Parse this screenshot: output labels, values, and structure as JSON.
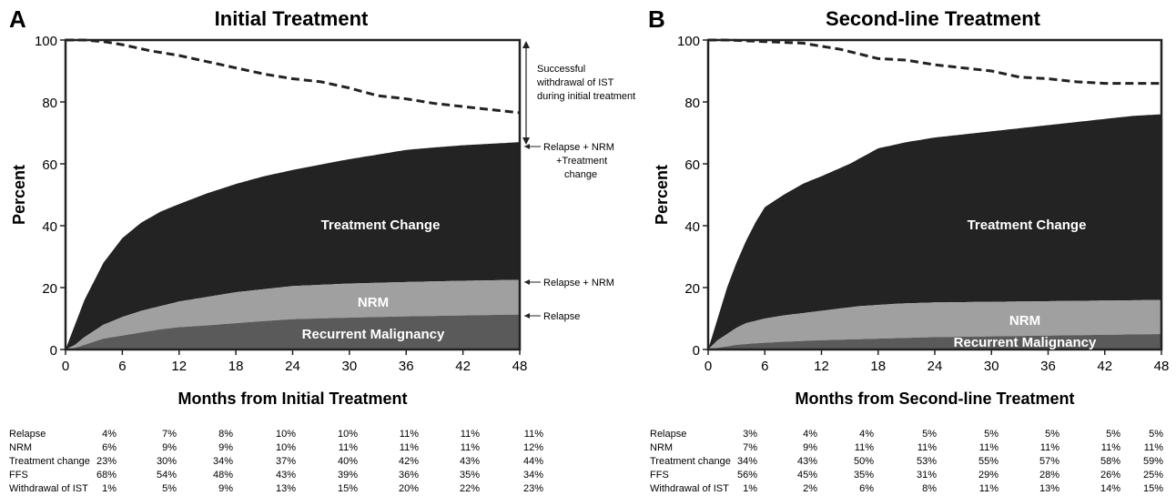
{
  "chart_data": [
    {
      "panel_letter": "A",
      "type": "area",
      "title": "Initial Treatment",
      "xlabel": "Months from Initial Treatment",
      "ylabel": "Percent",
      "xlim": [
        0,
        48
      ],
      "ylim": [
        0,
        100
      ],
      "x_ticks": [
        0,
        6,
        12,
        18,
        24,
        30,
        36,
        42,
        48
      ],
      "y_ticks": [
        0,
        20,
        40,
        60,
        80,
        100
      ],
      "colors": {
        "relapse": "#5a5a5a",
        "nrm": "#a0a0a0",
        "treatment_change": "#232323",
        "dashed": "#222222"
      },
      "series": [
        {
          "name": "Relapse",
          "x": [
            0,
            1,
            2,
            3,
            4,
            6,
            8,
            10,
            12,
            15,
            18,
            21,
            24,
            30,
            36,
            42,
            48
          ],
          "values": [
            0,
            0.5,
            1.5,
            2.5,
            3.5,
            4.5,
            5.5,
            6.5,
            7.2,
            7.8,
            8.5,
            9.2,
            9.8,
            10.3,
            10.7,
            11,
            11.3
          ]
        },
        {
          "name": "Relapse + NRM",
          "x": [
            0,
            1,
            2,
            3,
            4,
            6,
            8,
            10,
            12,
            15,
            18,
            21,
            24,
            30,
            36,
            42,
            48
          ],
          "values": [
            0,
            1.5,
            4,
            6,
            8,
            10.5,
            12.5,
            14,
            15.5,
            17,
            18.5,
            19.5,
            20.5,
            21.3,
            21.8,
            22.2,
            22.5
          ]
        },
        {
          "name": "Relapse + NRM +Treatment change",
          "x": [
            0,
            0.5,
            1,
            2,
            3,
            4,
            5,
            6,
            8,
            10,
            12,
            15,
            18,
            21,
            24,
            27,
            30,
            33,
            36,
            39,
            42,
            45,
            48
          ],
          "values": [
            0,
            4,
            8,
            16,
            22,
            28,
            32,
            36,
            41,
            44.5,
            47,
            50.5,
            53.5,
            56,
            58,
            59.8,
            61.5,
            63,
            64.5,
            65.3,
            66,
            66.5,
            67
          ]
        },
        {
          "name": "Successful withdrawal of IST during initial treatment",
          "x": [
            0,
            2,
            4,
            6,
            9,
            12,
            15,
            18,
            21,
            24,
            27,
            30,
            33,
            36,
            39,
            42,
            45,
            48
          ],
          "values": [
            100,
            100,
            99.5,
            98.5,
            96.5,
            95,
            93,
            91,
            89,
            87.5,
            86.5,
            84.5,
            82,
            81,
            79.5,
            78.5,
            77.5,
            76.5
          ]
        }
      ],
      "region_labels": {
        "treatment_change": "Treatment Change",
        "nrm": "NRM",
        "relapse": "Recurrent Malignancy"
      },
      "annotations": {
        "withdrawal": [
          "Successful",
          "withdrawal of IST",
          "during initial treatment"
        ],
        "total": [
          "Relapse + NRM",
          "+Treatment",
          "change"
        ],
        "relapse_nrm": "Relapse + NRM",
        "relapse": "Relapse"
      },
      "table": {
        "rows": [
          {
            "label": "Relapse",
            "values": [
              "4%",
              "7%",
              "8%",
              "10%",
              "10%",
              "11%",
              "11%",
              "11%"
            ]
          },
          {
            "label": "NRM",
            "values": [
              "6%",
              "9%",
              "9%",
              "10%",
              "11%",
              "11%",
              "11%",
              "12%"
            ]
          },
          {
            "label": "Treatment change",
            "values": [
              "23%",
              "30%",
              "34%",
              "37%",
              "40%",
              "42%",
              "43%",
              "44%"
            ]
          },
          {
            "label": "FFS",
            "values": [
              "68%",
              "54%",
              "48%",
              "43%",
              "39%",
              "36%",
              "35%",
              "34%"
            ]
          },
          {
            "label": "Withdrawal of IST",
            "values": [
              "1%",
              "5%",
              "9%",
              "13%",
              "15%",
              "20%",
              "22%",
              "23%"
            ]
          }
        ]
      }
    },
    {
      "panel_letter": "B",
      "type": "area",
      "title": "Second-line Treatment",
      "xlabel": "Months from Second-line Treatment",
      "ylabel": "Percent",
      "xlim": [
        0,
        48
      ],
      "ylim": [
        0,
        100
      ],
      "x_ticks": [
        0,
        6,
        12,
        18,
        24,
        30,
        36,
        42,
        48
      ],
      "y_ticks": [
        0,
        20,
        40,
        60,
        80,
        100
      ],
      "colors": {
        "relapse": "#5a5a5a",
        "nrm": "#a0a0a0",
        "treatment_change": "#232323",
        "dashed": "#222222"
      },
      "series": [
        {
          "name": "Relapse",
          "x": [
            0,
            1,
            2,
            3,
            5,
            8,
            12,
            18,
            24,
            36,
            48
          ],
          "values": [
            0,
            0.5,
            1,
            1.5,
            2,
            2.5,
            3,
            3.5,
            4,
            4.5,
            5
          ]
        },
        {
          "name": "Relapse + NRM",
          "x": [
            0,
            1,
            2,
            3,
            4,
            6,
            8,
            12,
            16,
            20,
            24,
            36,
            48
          ],
          "values": [
            0,
            3,
            5,
            7,
            8.5,
            10,
            11,
            12.5,
            14,
            14.8,
            15.2,
            15.6,
            16
          ]
        },
        {
          "name": "Relapse + NRM +Treatment change",
          "x": [
            0,
            0.5,
            1,
            2,
            3,
            4,
            5,
            6,
            8,
            10,
            12,
            15,
            18,
            21,
            24,
            27,
            30,
            33,
            36,
            39,
            42,
            45,
            48
          ],
          "values": [
            0,
            5,
            10,
            20,
            28,
            35,
            41,
            46,
            50,
            53.5,
            56,
            60,
            65,
            67,
            68.5,
            69.5,
            70.5,
            71.5,
            72.5,
            73.5,
            74.5,
            75.5,
            76
          ]
        },
        {
          "name": "Withdrawal of IST",
          "x": [
            0,
            2,
            6,
            10,
            12,
            14,
            16,
            18,
            21,
            24,
            27,
            30,
            33,
            36,
            39,
            42,
            45,
            48
          ],
          "values": [
            100,
            100,
            99.5,
            99,
            98,
            97,
            95.5,
            94,
            93.5,
            92,
            91,
            90,
            88,
            87.5,
            86.5,
            86,
            86,
            86
          ]
        }
      ],
      "region_labels": {
        "treatment_change": "Treatment Change",
        "nrm": "NRM",
        "relapse": "Recurrent Malignancy"
      },
      "table": {
        "rows": [
          {
            "label": "Relapse",
            "values": [
              "3%",
              "4%",
              "4%",
              "5%",
              "5%",
              "5%",
              "5%",
              "5%"
            ]
          },
          {
            "label": "NRM",
            "values": [
              "7%",
              "9%",
              "11%",
              "11%",
              "11%",
              "11%",
              "11%",
              "11%"
            ]
          },
          {
            "label": "Treatment change",
            "values": [
              "34%",
              "43%",
              "50%",
              "53%",
              "55%",
              "57%",
              "58%",
              "59%"
            ]
          },
          {
            "label": "FFS",
            "values": [
              "56%",
              "45%",
              "35%",
              "31%",
              "29%",
              "28%",
              "26%",
              "25%"
            ]
          },
          {
            "label": "Withdrawal of IST",
            "values": [
              "1%",
              "2%",
              "6%",
              "8%",
              "11%",
              "13%",
              "14%",
              "15%"
            ]
          }
        ]
      }
    }
  ]
}
